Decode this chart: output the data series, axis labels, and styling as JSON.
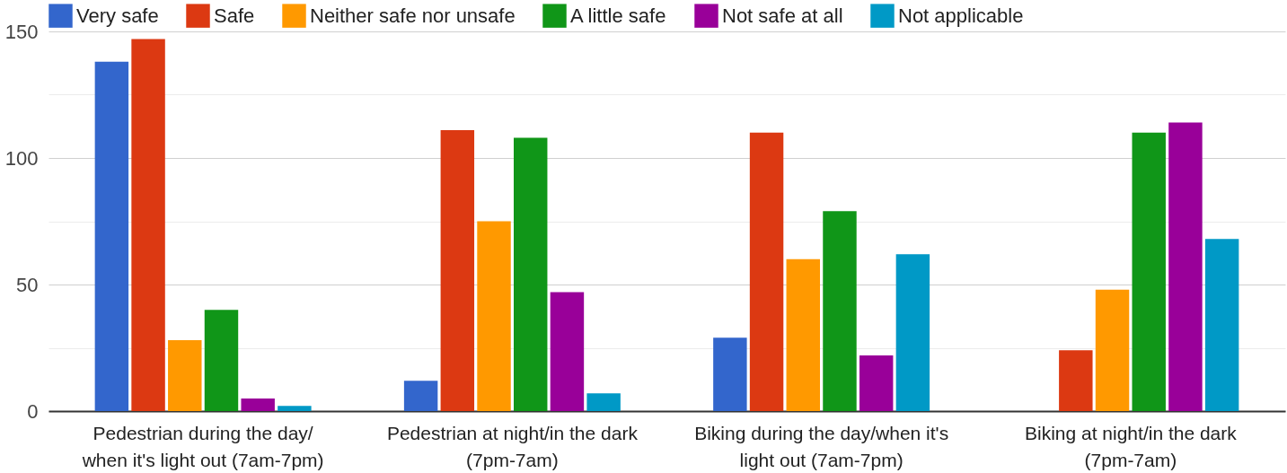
{
  "chart_data": {
    "type": "bar",
    "categories": [
      "Pedestrian during the day/\nwhen it's light out (7am-7pm)",
      "Pedestrian at night/in the dark\n(7pm-7am)",
      "Biking during the day/when it's\nlight out (7am-7pm)",
      "Biking at night/in the dark\n(7pm-7am)"
    ],
    "series": [
      {
        "name": "Very safe",
        "color": "#3366cc",
        "values": [
          138,
          12,
          29,
          0
        ]
      },
      {
        "name": "Safe",
        "color": "#dc3912",
        "values": [
          147,
          111,
          110,
          24
        ]
      },
      {
        "name": "Neither safe nor unsafe",
        "color": "#ff9900",
        "values": [
          28,
          75,
          60,
          48
        ]
      },
      {
        "name": "A little safe",
        "color": "#109618",
        "values": [
          40,
          108,
          79,
          110
        ]
      },
      {
        "name": "Not safe at all",
        "color": "#990099",
        "values": [
          5,
          47,
          22,
          114
        ]
      },
      {
        "name": "Not applicable",
        "color": "#0099c6",
        "values": [
          2,
          7,
          62,
          68
        ]
      }
    ],
    "ylim": [
      0,
      150
    ],
    "yticks": [
      0,
      {
        "value": 25,
        "label": null
      },
      50,
      {
        "value": 75,
        "label": null
      },
      100,
      {
        "value": 125,
        "label": null
      },
      150
    ],
    "grid": true,
    "legend": "top"
  }
}
